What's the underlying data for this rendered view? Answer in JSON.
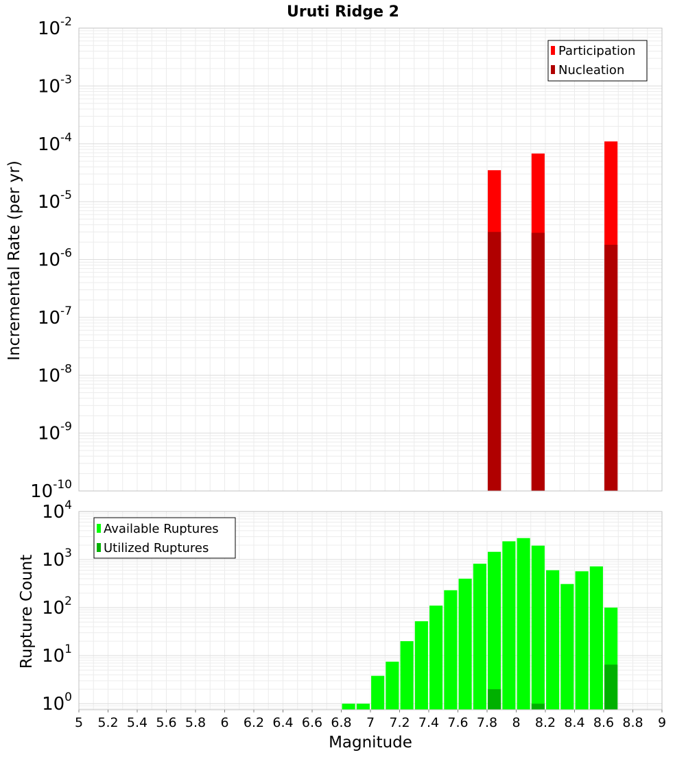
{
  "chart_data": [
    {
      "type": "bar",
      "title": "Uruti Ridge 2",
      "ylabel": "Incremental Rate (per yr)",
      "xlabel": "",
      "xlim": [
        5,
        9
      ],
      "ylim": [
        1e-10,
        0.01
      ],
      "yscale": "log",
      "bar_width": 0.09,
      "ytick_exponents": [
        "-10",
        "-9",
        "-8",
        "-7",
        "-6",
        "-5",
        "-4",
        "-3",
        "-2"
      ],
      "ytick_base": "10",
      "legend_position": "top-right",
      "series": [
        {
          "name": "Participation",
          "color": "#ff0000",
          "x": [
            7.85,
            8.15,
            8.65
          ],
          "values": [
            3.5e-05,
            6.8e-05,
            0.00011
          ]
        },
        {
          "name": "Nucleation",
          "color": "#b00000",
          "x": [
            7.85,
            8.15,
            8.65
          ],
          "values": [
            3e-06,
            2.9e-06,
            1.8e-06
          ]
        }
      ]
    },
    {
      "type": "bar",
      "title": "",
      "ylabel": "Rupture Count",
      "xlabel": "Magnitude",
      "xlim": [
        5,
        9
      ],
      "ylim": [
        0.75,
        10000
      ],
      "yscale": "log",
      "bar_width": 0.09,
      "ytick_exponents": [
        "0",
        "1",
        "2",
        "3",
        "4"
      ],
      "ytick_base": "10",
      "xticks": [
        "5",
        "5.2",
        "5.4",
        "5.6",
        "5.8",
        "6",
        "6.2",
        "6.4",
        "6.6",
        "6.8",
        "7",
        "7.2",
        "7.4",
        "7.6",
        "7.8",
        "8",
        "8.2",
        "8.4",
        "8.6",
        "8.8",
        "9"
      ],
      "legend_position": "top-left",
      "series": [
        {
          "name": "Available Ruptures",
          "color": "#00ff00",
          "x": [
            6.85,
            6.95,
            7.05,
            7.15,
            7.25,
            7.35,
            7.45,
            7.55,
            7.65,
            7.75,
            7.85,
            7.95,
            8.05,
            8.15,
            8.25,
            8.35,
            8.45,
            8.55,
            8.65
          ],
          "values": [
            1,
            1,
            3.8,
            7.5,
            20,
            52,
            110,
            230,
            400,
            820,
            1450,
            2400,
            2800,
            1950,
            600,
            310,
            570,
            720,
            100
          ]
        },
        {
          "name": "Utilized Ruptures",
          "color": "#00b000",
          "x": [
            7.85,
            8.15,
            8.65
          ],
          "values": [
            2,
            1,
            6.5
          ]
        }
      ]
    }
  ]
}
